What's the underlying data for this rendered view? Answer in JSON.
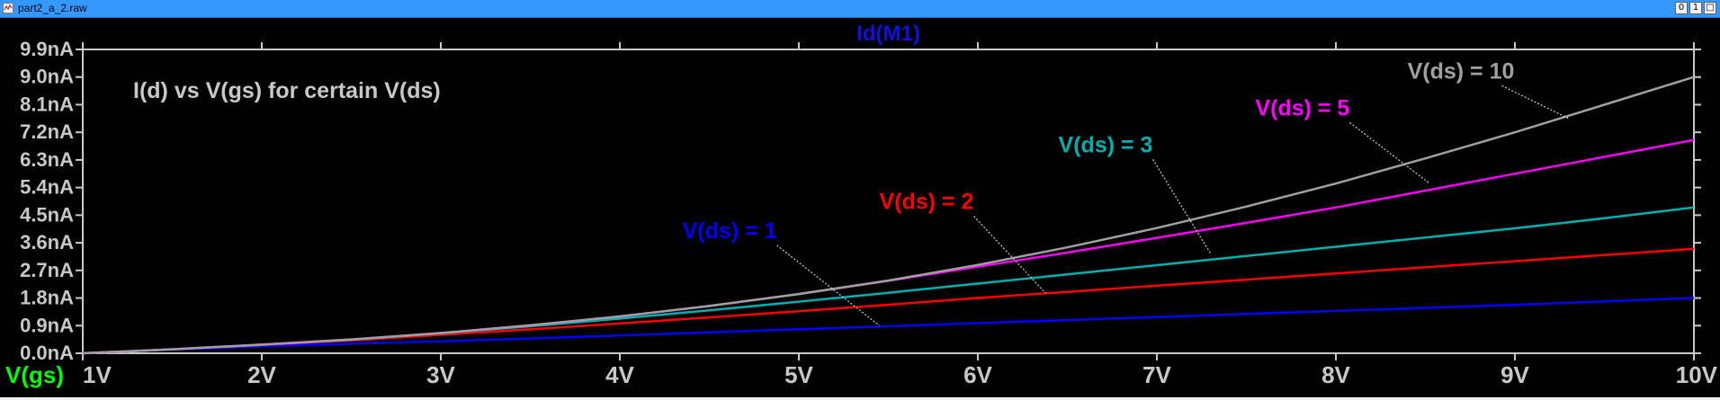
{
  "window": {
    "title": "part2_a_2.raw",
    "buttons": [
      "0",
      "1",
      "□"
    ]
  },
  "colors": {
    "background": "#000000",
    "axis": "#c8c8c8",
    "title_blue": "#1010e0",
    "xlabel_green": "#00ff00",
    "annotation": "#c8c8c8"
  },
  "chart_data": {
    "type": "line",
    "title": "Id(M1)",
    "annotation": "I(d) vs V(gs) for certain V(ds)",
    "xlabel": "V(gs)",
    "ylabel": "",
    "xlim": [
      1,
      10
    ],
    "ylim": [
      0,
      9.9
    ],
    "y_unit": "nA",
    "x_ticks": [
      "1V",
      "2V",
      "3V",
      "4V",
      "5V",
      "6V",
      "7V",
      "8V",
      "9V",
      "10V"
    ],
    "y_ticks": [
      "0.0nA",
      "0.9nA",
      "1.8nA",
      "2.7nA",
      "3.6nA",
      "4.5nA",
      "5.4nA",
      "6.3nA",
      "7.2nA",
      "8.1nA",
      "9.0nA",
      "9.9nA"
    ],
    "x": [
      1,
      1.5,
      2,
      2.5,
      3,
      3.5,
      4,
      4.5,
      5,
      5.5,
      6,
      6.5,
      7,
      7.5,
      8,
      8.5,
      9,
      9.5,
      10
    ],
    "series": [
      {
        "name": "V(ds) = 1",
        "color": "#0000ff",
        "values": [
          0.0,
          0.12,
          0.22,
          0.31,
          0.39,
          0.48,
          0.58,
          0.68,
          0.78,
          0.88,
          0.98,
          1.08,
          1.18,
          1.28,
          1.38,
          1.48,
          1.58,
          1.69,
          1.8
        ]
      },
      {
        "name": "V(ds) = 2",
        "color": "#ff0000",
        "values": [
          0.0,
          0.13,
          0.27,
          0.42,
          0.6,
          0.78,
          0.97,
          1.17,
          1.37,
          1.58,
          1.8,
          2.0,
          2.2,
          2.4,
          2.6,
          2.8,
          3.0,
          3.2,
          3.4
        ]
      },
      {
        "name": "V(ds) = 3",
        "color": "#00b0b0",
        "values": [
          0.0,
          0.13,
          0.28,
          0.44,
          0.65,
          0.88,
          1.13,
          1.4,
          1.68,
          1.97,
          2.27,
          2.57,
          2.87,
          3.17,
          3.47,
          3.77,
          4.07,
          4.4,
          4.75
        ]
      },
      {
        "name": "V(ds) = 5",
        "color": "#ff00ff",
        "values": [
          0.0,
          0.13,
          0.28,
          0.45,
          0.66,
          0.91,
          1.2,
          1.54,
          1.93,
          2.36,
          2.82,
          3.28,
          3.76,
          4.25,
          4.75,
          5.3,
          5.85,
          6.4,
          6.95
        ]
      },
      {
        "name": "V(ds) = 10",
        "color": "#a0a0a0",
        "values": [
          0.0,
          0.13,
          0.28,
          0.45,
          0.66,
          0.91,
          1.2,
          1.54,
          1.93,
          2.37,
          2.88,
          3.45,
          4.08,
          4.78,
          5.53,
          6.35,
          7.2,
          8.1,
          9.0
        ]
      }
    ],
    "labels": [
      {
        "text": "V(ds) = 1",
        "color": "#0000ff",
        "x": 4.35,
        "y": 3.75,
        "ptr_x": 5.45,
        "ptr_y": 0.9
      },
      {
        "text": "V(ds) = 2",
        "color": "#ff0000",
        "x": 5.45,
        "y": 4.7,
        "ptr_x": 6.38,
        "ptr_y": 1.95
      },
      {
        "text": "V(ds) = 3",
        "color": "#00b0b0",
        "x": 6.45,
        "y": 6.55,
        "ptr_x": 7.3,
        "ptr_y": 3.25
      },
      {
        "text": "V(ds) = 5",
        "color": "#ff00ff",
        "x": 7.55,
        "y": 7.75,
        "ptr_x": 8.52,
        "ptr_y": 5.55
      },
      {
        "text": "V(ds) = 10",
        "color": "#a0a0a0",
        "x": 8.4,
        "y": 8.95,
        "ptr_x": 9.3,
        "ptr_y": 7.65
      }
    ],
    "grid": false,
    "legend": "inline labels"
  }
}
